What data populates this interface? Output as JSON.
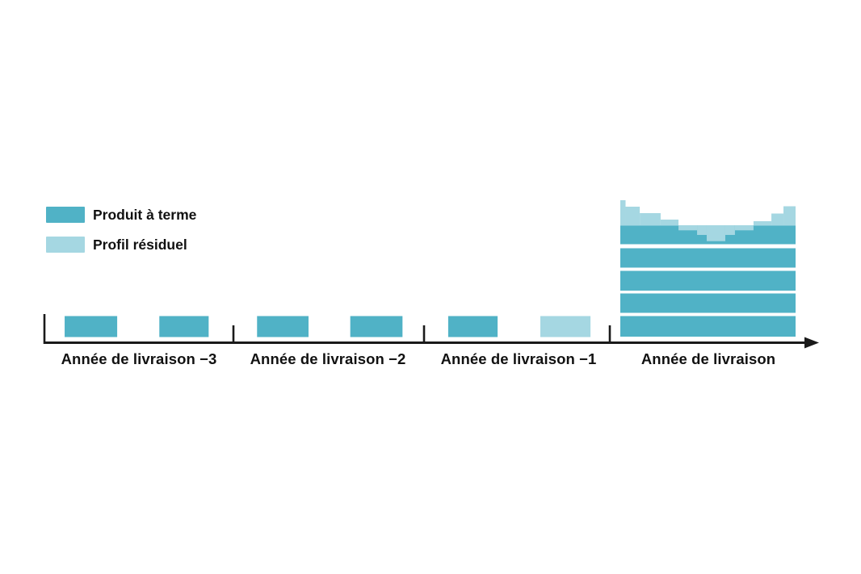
{
  "figure": {
    "background": "#FFFFFF"
  },
  "legend": {
    "items": [
      {
        "label": "Produit à terme",
        "series": "forward",
        "color": "#50B2C6"
      },
      {
        "label": "Profil résiduel",
        "series": "residual",
        "color": "#A5D7E2"
      }
    ]
  },
  "x_axis": {
    "labels": [
      "Année de livraison −3",
      "Année de livraison −2",
      "Année de livraison −1",
      "Année de livraison"
    ]
  },
  "chart_data": {
    "type": "bar",
    "title": "",
    "subtitle": "",
    "categories": [
      "Année de livraison −3",
      "Année de livraison −2",
      "Année de livraison −1",
      "Année de livraison"
    ],
    "legend": [
      {
        "name": "Produit à terme",
        "color": "#50B2C6"
      },
      {
        "name": "Profil résiduel",
        "color": "#A5D7E2"
      }
    ],
    "colors": {
      "forward": "#50B2C6",
      "residual": "#A5D7E2",
      "axis": "#1A1A1A",
      "text": "#111111"
    },
    "axis": {
      "numeric_scale_shown": false,
      "x_arrow": true,
      "ticks_at_category_boundaries": true,
      "grid": false
    },
    "pre_delivery_bars": [
      {
        "category_index": 0,
        "bars": [
          {
            "series": "forward",
            "pos": 0.107,
            "width": 0.278
          },
          {
            "series": "forward",
            "pos": 0.608,
            "width": 0.261
          }
        ]
      },
      {
        "category_index": 1,
        "bars": [
          {
            "series": "forward",
            "pos": 0.124,
            "width": 0.27
          },
          {
            "series": "forward",
            "pos": 0.613,
            "width": 0.274
          }
        ]
      },
      {
        "category_index": 2,
        "bars": [
          {
            "series": "forward",
            "pos": 0.13,
            "width": 0.266
          },
          {
            "series": "residual",
            "pos": 0.626,
            "width": 0.27
          }
        ]
      }
    ],
    "delivery_year": {
      "category_index": 3,
      "forward_blocks": 5,
      "residual_profile_steps": [
        {
          "from": 0.0,
          "to": 0.03,
          "offset": 31
        },
        {
          "from": 0.03,
          "to": 0.111,
          "offset": 23
        },
        {
          "from": 0.111,
          "to": 0.23,
          "offset": 15
        },
        {
          "from": 0.23,
          "to": 0.332,
          "offset": 7
        },
        {
          "from": 0.332,
          "to": 0.438,
          "offset": -6.3
        },
        {
          "from": 0.438,
          "to": 0.493,
          "offset": -12
        },
        {
          "from": 0.493,
          "to": 0.599,
          "offset": -19.7
        },
        {
          "from": 0.599,
          "to": 0.654,
          "offset": -12
        },
        {
          "from": 0.654,
          "to": 0.76,
          "offset": -6.3
        },
        {
          "from": 0.76,
          "to": 0.862,
          "offset": 5
        },
        {
          "from": 0.862,
          "to": 0.931,
          "offset": 14.5
        },
        {
          "from": 0.931,
          "to": 1.0,
          "offset": 23.5
        }
      ]
    }
  }
}
